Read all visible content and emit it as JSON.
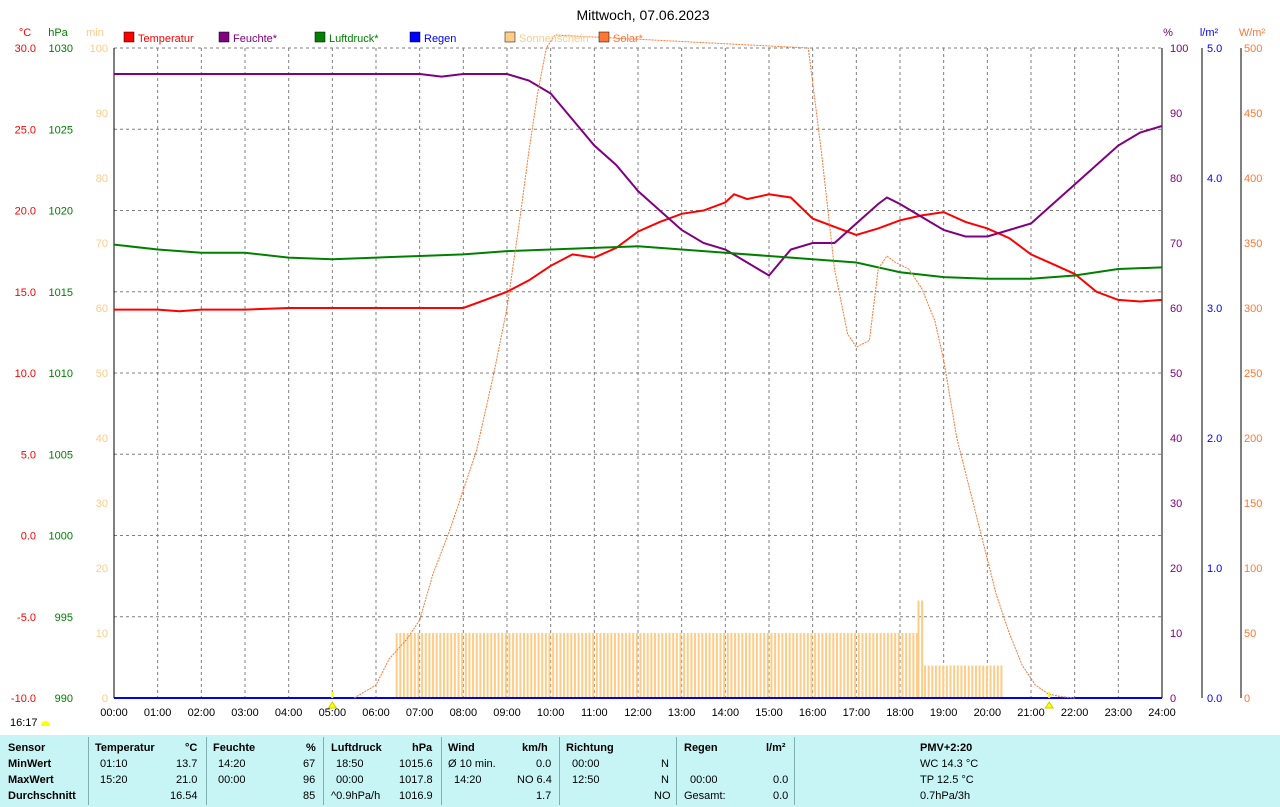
{
  "title": "Mittwoch, 07.06.2023",
  "current_time": "16:17",
  "colors": {
    "temperature": "#ff0000",
    "humidity": "#800080",
    "pressure": "#008000",
    "rain": "#0000ff",
    "sunshine": "#ffcc88",
    "solar": "#ff7733",
    "grid": "#7f7f7f",
    "footer_bg": "#c7f5f5"
  },
  "axes": {
    "temp": {
      "unit": "°C",
      "min": -10,
      "max": 30,
      "ticks": [
        "30.0",
        "25.0",
        "20.0",
        "15.0",
        "10.0",
        "5.0",
        "0.0",
        "-5.0",
        "-10.0"
      ]
    },
    "pressure": {
      "unit": "hPa",
      "min": 990,
      "max": 1030,
      "ticks": [
        "1030",
        "1025",
        "1020",
        "1015",
        "1010",
        "1005",
        "1000",
        "995",
        "990"
      ]
    },
    "sunshine": {
      "unit": "min",
      "min": 0,
      "max": 100,
      "ticks": [
        "100",
        "90",
        "80",
        "70",
        "60",
        "50",
        "40",
        "30",
        "20",
        "10",
        "0"
      ]
    },
    "humidity": {
      "unit": "%",
      "min": 0,
      "max": 100,
      "ticks": [
        "100",
        "90",
        "80",
        "70",
        "60",
        "50",
        "40",
        "30",
        "20",
        "10",
        "0"
      ]
    },
    "rain": {
      "unit": "l/m²",
      "min": 0,
      "max": 5,
      "ticks": [
        "5.0",
        "4.0",
        "3.0",
        "2.0",
        "1.0",
        "0.0"
      ]
    },
    "solar": {
      "unit": "W/m²",
      "min": 0,
      "max": 500,
      "ticks": [
        "500",
        "450",
        "400",
        "350",
        "300",
        "250",
        "200",
        "150",
        "100",
        "50",
        "0"
      ]
    }
  },
  "x_ticks": [
    "00:00",
    "01:00",
    "02:00",
    "03:00",
    "04:00",
    "05:00",
    "06:00",
    "07:00",
    "08:00",
    "09:00",
    "10:00",
    "11:00",
    "12:00",
    "13:00",
    "14:00",
    "15:00",
    "16:00",
    "17:00",
    "18:00",
    "19:00",
    "20:00",
    "21:00",
    "22:00",
    "23:00",
    "24:00"
  ],
  "legend": [
    {
      "key": "temperature",
      "label": "Temperatur"
    },
    {
      "key": "humidity",
      "label": "Feuchte*"
    },
    {
      "key": "pressure",
      "label": "Luftdruck*"
    },
    {
      "key": "rain",
      "label": "Regen"
    },
    {
      "key": "sunshine",
      "label": "Sonnenschein"
    },
    {
      "key": "solar",
      "label": "Solar*"
    }
  ],
  "chart_data": {
    "type": "line",
    "x_unit": "hours",
    "grid": true,
    "legend_position": "top",
    "sunrise": "05:00",
    "sunset": "21:25",
    "series": [
      {
        "name": "Temperatur",
        "axis": "temp",
        "x": [
          0,
          1,
          1.5,
          2,
          3,
          4,
          5,
          6,
          7,
          8,
          8.5,
          9,
          9.5,
          10,
          10.5,
          11,
          11.5,
          12,
          12.5,
          13,
          13.5,
          14,
          14.2,
          14.5,
          15,
          15.5,
          16,
          16.5,
          17,
          17.5,
          18,
          18.5,
          19,
          19.5,
          20,
          20.5,
          21,
          21.5,
          22,
          22.5,
          23,
          23.5,
          24
        ],
        "y": [
          13.9,
          13.9,
          13.8,
          13.9,
          13.9,
          14.0,
          14.0,
          14.0,
          14.0,
          14.0,
          14.5,
          15.0,
          15.7,
          16.6,
          17.3,
          17.1,
          17.7,
          18.7,
          19.3,
          19.8,
          20.0,
          20.5,
          21.0,
          20.7,
          21.0,
          20.8,
          19.5,
          19.0,
          18.5,
          18.9,
          19.4,
          19.7,
          19.9,
          19.3,
          18.9,
          18.3,
          17.3,
          16.7,
          16.1,
          15.0,
          14.5,
          14.4,
          14.5
        ]
      },
      {
        "name": "Feuchte*",
        "axis": "humidity",
        "x": [
          0,
          1,
          2,
          3,
          4,
          5,
          6,
          7,
          7.5,
          8,
          9,
          9.5,
          10,
          10.5,
          11,
          11.5,
          12,
          12.5,
          13,
          13.5,
          14,
          14.5,
          15,
          15.5,
          16,
          16.5,
          17,
          17.5,
          17.7,
          18,
          18.5,
          19,
          19.5,
          20,
          20.5,
          21,
          21.5,
          22,
          22.5,
          23,
          23.5,
          24
        ],
        "y": [
          96,
          96,
          96,
          96,
          96,
          96,
          96,
          96,
          95.6,
          96,
          96,
          95,
          93,
          89,
          85,
          82,
          78,
          75,
          72,
          70,
          69,
          67,
          65,
          69,
          70,
          70,
          73,
          76,
          77,
          76,
          74,
          72,
          71,
          71,
          72,
          73,
          76,
          79,
          82,
          85,
          87,
          88
        ]
      },
      {
        "name": "Luftdruck*",
        "axis": "pressure",
        "x": [
          0,
          1,
          2,
          3,
          4,
          5,
          6,
          7,
          8,
          9,
          10,
          11,
          12,
          13,
          14,
          15,
          16,
          17,
          18,
          19,
          20,
          21,
          22,
          23,
          24
        ],
        "y": [
          1017.9,
          1017.6,
          1017.4,
          1017.4,
          1017.1,
          1017.0,
          1017.1,
          1017.2,
          1017.3,
          1017.5,
          1017.6,
          1017.7,
          1017.8,
          1017.6,
          1017.4,
          1017.2,
          1017.0,
          1016.8,
          1016.2,
          1015.9,
          1015.8,
          1015.8,
          1016.0,
          1016.4,
          1016.5
        ]
      },
      {
        "name": "Regen",
        "axis": "rain",
        "x": [
          0,
          24
        ],
        "y": [
          0,
          0
        ]
      },
      {
        "name": "Solar*",
        "axis": "solar",
        "x": [
          5.5,
          6,
          6.3,
          6.7,
          7,
          7.3,
          7.7,
          8,
          8.3,
          8.7,
          9,
          9.3,
          9.5,
          9.7,
          9.9,
          10.1,
          15.9,
          16.2,
          16.5,
          16.8,
          17,
          17.3,
          17.5,
          17.7,
          17.9,
          18.2,
          18.5,
          18.8,
          19.0,
          19.3,
          19.6,
          19.9,
          20.2,
          20.5,
          20.8,
          21.1,
          21.4,
          21.7,
          22
        ],
        "y": [
          0,
          10,
          30,
          45,
          60,
          95,
          130,
          160,
          190,
          250,
          300,
          370,
          420,
          465,
          500,
          510,
          500,
          420,
          330,
          280,
          270,
          275,
          330,
          340,
          335,
          330,
          315,
          290,
          260,
          200,
          160,
          120,
          80,
          50,
          25,
          10,
          3,
          1,
          0
        ]
      },
      {
        "name": "Sonnenschein",
        "axis": "sunshine",
        "bars": [
          {
            "from": 6.45,
            "to": 18.4,
            "value": 10
          },
          {
            "from": 18.4,
            "to": 18.5,
            "value": 15
          },
          {
            "from": 18.55,
            "to": 20.3,
            "value": 5
          }
        ]
      }
    ]
  },
  "footer": {
    "sensor": {
      "header": "Sensor",
      "rows": [
        "MinWert",
        "MaxWert",
        "Durchschnitt"
      ]
    },
    "temperature": {
      "header": "Temperatur",
      "unit": "°C",
      "rows": [
        {
          "time": "01:10",
          "value": "13.7"
        },
        {
          "time": "15:20",
          "value": "21.0"
        },
        {
          "time": "",
          "value": "16.54"
        }
      ]
    },
    "humidity": {
      "header": "Feuchte",
      "unit": "%",
      "rows": [
        {
          "time": "14:20",
          "value": "67"
        },
        {
          "time": "00:00",
          "value": "96"
        },
        {
          "time": "",
          "value": "85"
        }
      ]
    },
    "pressure": {
      "header": "Luftdruck",
      "unit": "hPa",
      "rows": [
        {
          "time": "18:50",
          "value": "1015.6"
        },
        {
          "time": "00:00",
          "value": "1017.8"
        },
        {
          "time": "^0.9hPa/h",
          "value": "1016.9"
        }
      ]
    },
    "wind": {
      "header": "Wind",
      "unit": "km/h",
      "rows": [
        {
          "time": "Ø 10 min.",
          "value": "0.0"
        },
        {
          "time": "14:20",
          "value": "NO 6.4"
        },
        {
          "time": "",
          "value": "1.7"
        }
      ]
    },
    "direction": {
      "header": "Richtung",
      "rows": [
        {
          "time": "00:00",
          "value": "N"
        },
        {
          "time": "12:50",
          "value": "N"
        },
        {
          "time": "",
          "value": "NO"
        }
      ]
    },
    "rain": {
      "header": "Regen",
      "unit": "l/m²",
      "rows": [
        {
          "time": "",
          "value": ""
        },
        {
          "time": "00:00",
          "value": "0.0"
        },
        {
          "time": "Gesamt:",
          "value": "0.0"
        }
      ]
    },
    "pmv": {
      "header": "PMV+2:20",
      "rows": [
        "WC 14.3 °C",
        "TP 12.5 °C",
        "0.7hPa/3h"
      ]
    }
  }
}
